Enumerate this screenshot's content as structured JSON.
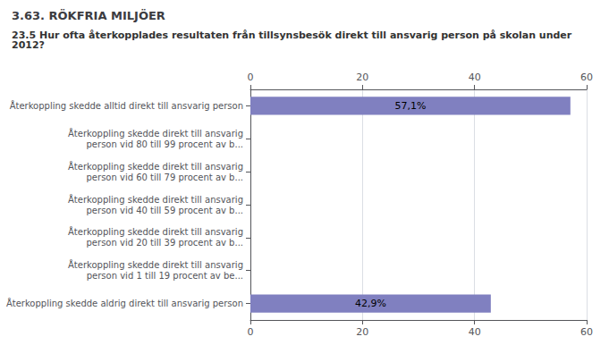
{
  "chart_data": {
    "type": "bar",
    "orientation": "horizontal",
    "title": "3.63. RÖKFRIA MILJÖER",
    "subtitle": "23.5 Hur ofta återkopplades resultaten från tillsynsbesök direkt till ansvarig person på skolan under 2012?",
    "categories": [
      "Återkoppling skedde alltid direkt till ansvarig person",
      "Återkoppling skedde direkt till ansvarig\nperson vid 80 till 99 procent av b...",
      "Återkoppling skedde direkt till ansvarig\nperson vid 60 till 79 procent av b...",
      "Återkoppling skedde direkt till ansvarig\nperson vid 40 till 59 procent av b...",
      "Återkoppling skedde direkt till ansvarig\nperson vid 20 till 39 procent av b...",
      "Återkoppling skedde direkt till ansvarig\nperson vid 1 till 19 procent av be...",
      "Återkoppling skedde aldrig direkt till ansvarig person"
    ],
    "values": [
      57.1,
      0,
      0,
      0,
      0,
      0,
      42.9
    ],
    "value_labels": [
      "57,1%",
      null,
      null,
      null,
      null,
      null,
      "42,9%"
    ],
    "color": "#8080c0",
    "xlim": [
      0,
      60
    ],
    "xticks": [
      0,
      20,
      40,
      60
    ],
    "grid": true
  }
}
